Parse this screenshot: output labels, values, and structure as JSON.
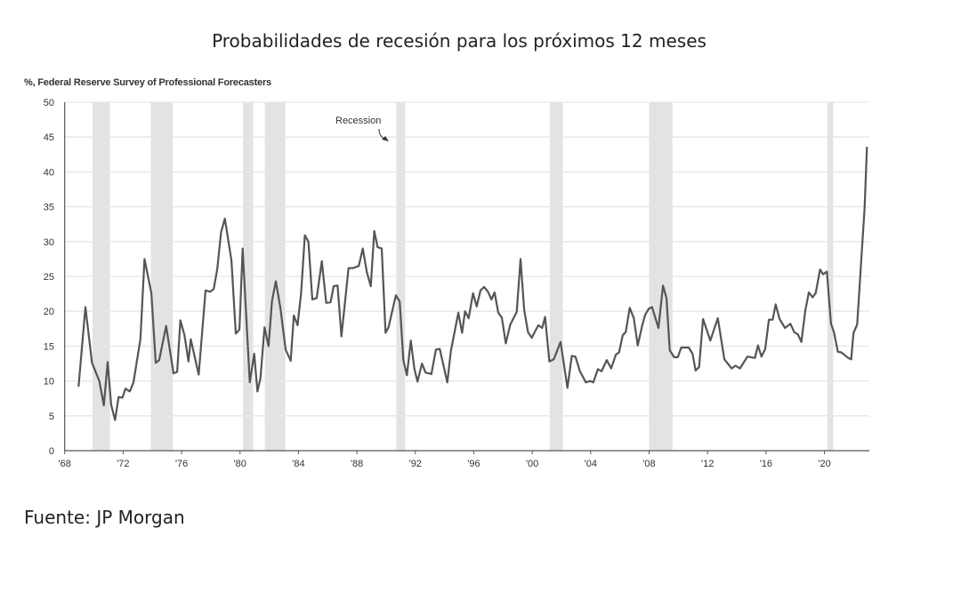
{
  "title": "Probabilidades de recesión para los próximos 12 meses",
  "source": {
    "label": "Fuente:",
    "value": "JP Morgan"
  },
  "chart_data": {
    "type": "line",
    "title": "Probabilidades de recesión para los próximos 12 meses",
    "ylabel": "%, Federal Reserve Survey of Professional Forecasters",
    "xlabel": "",
    "ylim": [
      0,
      50
    ],
    "yticks": [
      0,
      5,
      10,
      15,
      20,
      25,
      30,
      35,
      40,
      45,
      50
    ],
    "xlim": [
      1968,
      2023.3
    ],
    "xticks": [
      {
        "year": 1968,
        "label": "'68"
      },
      {
        "year": 1972,
        "label": "'72"
      },
      {
        "year": 1976,
        "label": "'76"
      },
      {
        "year": 1980,
        "label": "'80"
      },
      {
        "year": 1984,
        "label": "'84"
      },
      {
        "year": 1988,
        "label": "'88"
      },
      {
        "year": 1992,
        "label": "'92"
      },
      {
        "year": 1996,
        "label": "'96"
      },
      {
        "year": 2000,
        "label": "'00"
      },
      {
        "year": 2004,
        "label": "'04"
      },
      {
        "year": 2008,
        "label": "'08"
      },
      {
        "year": 2012,
        "label": "'12"
      },
      {
        "year": 2016,
        "label": "'16"
      },
      {
        "year": 2020,
        "label": "'20"
      }
    ],
    "grid": "horizontal",
    "line_color": "#555555",
    "recession_color": "#e2e3e5",
    "annotation": "Recession",
    "recessions": [
      [
        1969.9,
        1971.1
      ],
      [
        1973.9,
        1975.4
      ],
      [
        1980.2,
        1980.9
      ],
      [
        1981.7,
        1983.1
      ],
      [
        1990.7,
        1991.3
      ],
      [
        2001.2,
        2002.1
      ],
      [
        2008.0,
        2009.6
      ],
      [
        2020.2,
        2020.6
      ]
    ],
    "series": [
      {
        "points": [
          [
            1968.95,
            9.2
          ],
          [
            1969.42,
            20.6
          ],
          [
            1969.87,
            12.6
          ],
          [
            1970.37,
            10
          ],
          [
            1970.68,
            6.5
          ],
          [
            1970.94,
            12.7
          ],
          [
            1971.18,
            6.6
          ],
          [
            1971.45,
            4.4
          ],
          [
            1971.69,
            7.7
          ],
          [
            1971.95,
            7.6
          ],
          [
            1972.16,
            8.9
          ],
          [
            1972.46,
            8.5
          ],
          [
            1972.71,
            9.8
          ],
          [
            1973.18,
            16
          ],
          [
            1973.46,
            27.5
          ],
          [
            1973.93,
            22.6
          ],
          [
            1974.23,
            12.6
          ],
          [
            1974.47,
            13
          ],
          [
            1974.94,
            17.9
          ],
          [
            1975.45,
            11.1
          ],
          [
            1975.7,
            11.3
          ],
          [
            1975.92,
            18.7
          ],
          [
            1976.2,
            16.6
          ],
          [
            1976.47,
            12.8
          ],
          [
            1976.63,
            16
          ],
          [
            1977.17,
            10.9
          ],
          [
            1977.64,
            23
          ],
          [
            1977.95,
            22.8
          ],
          [
            1978.2,
            23.2
          ],
          [
            1978.44,
            26
          ],
          [
            1978.7,
            31.3
          ],
          [
            1978.96,
            33.3
          ],
          [
            1979.41,
            27.3
          ],
          [
            1979.71,
            16.8
          ],
          [
            1979.96,
            17.4
          ],
          [
            1980.18,
            29
          ],
          [
            1980.67,
            9.8
          ],
          [
            1980.97,
            13.9
          ],
          [
            1981.19,
            8.5
          ],
          [
            1981.4,
            10.4
          ],
          [
            1981.68,
            17.7
          ],
          [
            1981.95,
            15
          ],
          [
            1982.19,
            21.5
          ],
          [
            1982.45,
            24.3
          ],
          [
            1982.76,
            20.5
          ],
          [
            1983.12,
            14.5
          ],
          [
            1983.47,
            12.9
          ],
          [
            1983.68,
            19.4
          ],
          [
            1983.94,
            18
          ],
          [
            1984.18,
            22.6
          ],
          [
            1984.44,
            30.9
          ],
          [
            1984.68,
            30
          ],
          [
            1984.95,
            21.7
          ],
          [
            1985.25,
            21.9
          ],
          [
            1985.6,
            27.2
          ],
          [
            1985.9,
            21.2
          ],
          [
            1986.2,
            21.3
          ],
          [
            1986.41,
            23.6
          ],
          [
            1986.68,
            23.7
          ],
          [
            1986.94,
            16.4
          ],
          [
            1987.43,
            26.2
          ],
          [
            1987.73,
            26.2
          ],
          [
            1988.13,
            26.5
          ],
          [
            1988.4,
            29
          ],
          [
            1988.68,
            25.6
          ],
          [
            1988.95,
            23.6
          ],
          [
            1989.19,
            31.5
          ],
          [
            1989.42,
            29.2
          ],
          [
            1989.7,
            29
          ],
          [
            1989.96,
            16.9
          ],
          [
            1990.16,
            17.7
          ],
          [
            1990.67,
            22.3
          ],
          [
            1990.93,
            21.4
          ],
          [
            1991.18,
            13
          ],
          [
            1991.42,
            10.8
          ],
          [
            1991.69,
            15.8
          ],
          [
            1991.93,
            11.8
          ],
          [
            1992.15,
            9.9
          ],
          [
            1992.45,
            12.5
          ],
          [
            1992.7,
            11.2
          ],
          [
            1993.1,
            11
          ],
          [
            1993.41,
            14.5
          ],
          [
            1993.67,
            14.6
          ],
          [
            1994.19,
            9.8
          ],
          [
            1994.43,
            14.3
          ],
          [
            1994.94,
            19.8
          ],
          [
            1995.2,
            16.9
          ],
          [
            1995.4,
            20
          ],
          [
            1995.65,
            19
          ],
          [
            1995.95,
            22.6
          ],
          [
            1996.2,
            20.7
          ],
          [
            1996.46,
            23
          ],
          [
            1996.7,
            23.5
          ],
          [
            1996.97,
            22.8
          ],
          [
            1997.21,
            21.7
          ],
          [
            1997.42,
            22.7
          ],
          [
            1997.68,
            19.8
          ],
          [
            1997.92,
            19.1
          ],
          [
            1998.19,
            15.4
          ],
          [
            1998.5,
            18.1
          ],
          [
            1998.94,
            19.9
          ],
          [
            1999.2,
            27.5
          ],
          [
            1999.45,
            20.2
          ],
          [
            1999.71,
            17
          ],
          [
            1999.97,
            16.2
          ],
          [
            2000.42,
            18
          ],
          [
            2000.68,
            17.6
          ],
          [
            2000.88,
            19.2
          ],
          [
            2001.17,
            12.8
          ],
          [
            2001.47,
            13.1
          ],
          [
            2001.94,
            15.6
          ],
          [
            2002.41,
            9
          ],
          [
            2002.71,
            13.6
          ],
          [
            2002.96,
            13.5
          ],
          [
            2003.26,
            11.4
          ],
          [
            2003.67,
            9.8
          ],
          [
            2003.98,
            10
          ],
          [
            2004.18,
            9.8
          ],
          [
            2004.49,
            11.7
          ],
          [
            2004.75,
            11.4
          ],
          [
            2005.1,
            13
          ],
          [
            2005.4,
            11.8
          ],
          [
            2005.73,
            13.8
          ],
          [
            2005.94,
            14.1
          ],
          [
            2006.2,
            16.6
          ],
          [
            2006.4,
            17
          ],
          [
            2006.67,
            20.5
          ],
          [
            2006.95,
            19
          ],
          [
            2007.22,
            15.1
          ],
          [
            2007.53,
            18
          ],
          [
            2007.73,
            19.5
          ],
          [
            2007.99,
            20.4
          ],
          [
            2008.2,
            20.6
          ],
          [
            2008.64,
            17.6
          ],
          [
            2008.95,
            23.7
          ],
          [
            2009.19,
            21.9
          ],
          [
            2009.41,
            14.4
          ],
          [
            2009.72,
            13.4
          ],
          [
            2009.96,
            13.4
          ],
          [
            2010.2,
            14.8
          ],
          [
            2010.71,
            14.8
          ],
          [
            2010.97,
            13.9
          ],
          [
            2011.18,
            11.5
          ],
          [
            2011.42,
            12
          ],
          [
            2011.69,
            18.9
          ],
          [
            2012.19,
            15.8
          ],
          [
            2012.7,
            19
          ],
          [
            2013.15,
            13.1
          ],
          [
            2013.65,
            11.8
          ],
          [
            2013.92,
            12.2
          ],
          [
            2014.22,
            11.8
          ],
          [
            2014.73,
            13.5
          ],
          [
            2015.24,
            13.3
          ],
          [
            2015.45,
            15.1
          ],
          [
            2015.69,
            13.5
          ],
          [
            2015.95,
            14.6
          ],
          [
            2016.2,
            18.8
          ],
          [
            2016.46,
            18.8
          ],
          [
            2016.66,
            21
          ],
          [
            2016.93,
            18.9
          ],
          [
            2017.3,
            17.6
          ],
          [
            2017.67,
            18.2
          ],
          [
            2017.93,
            17
          ],
          [
            2018.18,
            16.7
          ],
          [
            2018.42,
            15.6
          ],
          [
            2018.69,
            20.1
          ],
          [
            2018.93,
            22.7
          ],
          [
            2019.19,
            22
          ],
          [
            2019.4,
            22.6
          ],
          [
            2019.7,
            26
          ],
          [
            2019.91,
            25.3
          ],
          [
            2020.17,
            25.7
          ],
          [
            2020.45,
            18.2
          ],
          [
            2020.65,
            17
          ],
          [
            2020.92,
            14.2
          ],
          [
            2021.16,
            14.1
          ],
          [
            2021.63,
            13.3
          ],
          [
            2021.83,
            13.1
          ],
          [
            2021.99,
            16.9
          ],
          [
            2022.24,
            18.1
          ],
          [
            2022.75,
            34.9
          ],
          [
            2022.91,
            43.6
          ]
        ]
      }
    ]
  }
}
